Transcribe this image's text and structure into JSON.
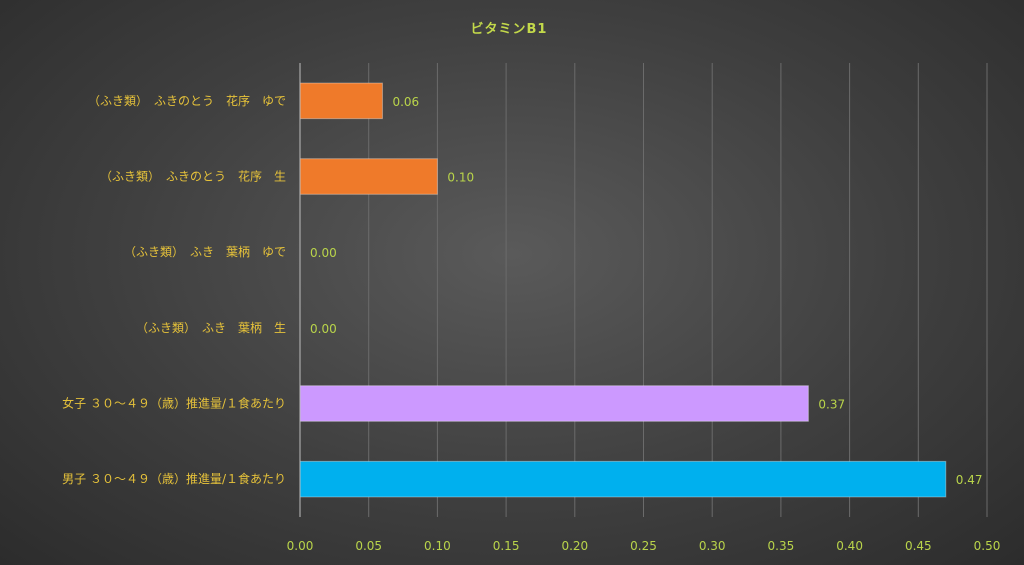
{
  "chart_data": {
    "type": "bar",
    "orientation": "horizontal",
    "title": "ビタミンB1",
    "categories": [
      "（ふき類）　ふきのとう　花序　ゆで",
      "（ふき類）　ふきのとう　花序　生",
      "（ふき類）　ふき　葉柄　ゆで",
      "（ふき類）　ふき　葉柄　生",
      "女子 ３０～４９（歳）推進量/１食あたり",
      "男子 ３０～４９（歳）推進量/１食あたり"
    ],
    "values": [
      0.06,
      0.1,
      0.0,
      0.0,
      0.37,
      0.47
    ],
    "value_labels": [
      "0.06",
      "0.10",
      "0.00",
      "0.00",
      "0.37",
      "0.47"
    ],
    "colors": [
      "#ef7a2a",
      "#ef7a2a",
      "#ef7a2a",
      "#ef7a2a",
      "#cc99ff",
      "#00b0ee"
    ],
    "xlim": [
      0,
      0.5
    ],
    "xticks": [
      "0.00",
      "0.05",
      "0.10",
      "0.15",
      "0.20",
      "0.25",
      "0.30",
      "0.35",
      "0.40",
      "0.45",
      "0.50"
    ],
    "grid": true,
    "legend": "none"
  }
}
